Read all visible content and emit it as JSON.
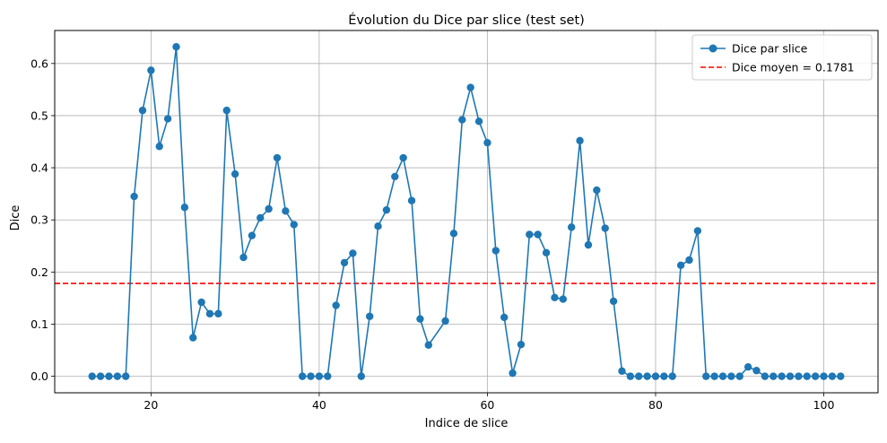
{
  "chart_data": {
    "type": "line",
    "title": "Évolution du Dice par slice (test set)",
    "xlabel": "Indice de slice",
    "ylabel": "Dice",
    "xlim": [
      8.55,
      106.45
    ],
    "ylim": [
      -0.0316,
      0.6633
    ],
    "xticks": [
      20,
      40,
      60,
      80,
      100
    ],
    "yticks": [
      0.0,
      0.1,
      0.2,
      0.3,
      0.4,
      0.5,
      0.6
    ],
    "xtick_labels": [
      "20",
      "40",
      "60",
      "80",
      "100"
    ],
    "ytick_labels": [
      "0.0",
      "0.1",
      "0.2",
      "0.3",
      "0.4",
      "0.5",
      "0.6"
    ],
    "grid": true,
    "legend_position": "upper right",
    "series": [
      {
        "name": "Dice par slice",
        "color": "#1f77b4",
        "marker": "circle",
        "x": [
          13,
          14,
          15,
          16,
          17,
          18,
          19,
          20,
          21,
          22,
          23,
          24,
          25,
          26,
          27,
          28,
          29,
          30,
          31,
          32,
          33,
          34,
          35,
          36,
          37,
          38,
          39,
          40,
          41,
          42,
          43,
          44,
          45,
          46,
          47,
          48,
          49,
          50,
          51,
          52,
          53,
          55,
          56,
          57,
          58,
          59,
          60,
          61,
          62,
          63,
          64,
          65,
          66,
          67,
          68,
          69,
          70,
          71,
          72,
          73,
          74,
          75,
          76,
          77,
          78,
          79,
          80,
          81,
          82,
          83,
          84,
          85,
          86,
          87,
          88,
          89,
          90,
          91,
          92,
          93,
          94,
          95,
          96,
          97,
          98,
          99,
          100,
          101,
          102
        ],
        "y": [
          0.0,
          0.0,
          0.0,
          0.0,
          0.0,
          0.345,
          0.51,
          0.587,
          0.441,
          0.494,
          0.632,
          0.324,
          0.074,
          0.142,
          0.12,
          0.12,
          0.51,
          0.388,
          0.228,
          0.27,
          0.304,
          0.321,
          0.419,
          0.317,
          0.291,
          0.0,
          0.0,
          0.0,
          0.0,
          0.136,
          0.218,
          0.236,
          0.0,
          0.115,
          0.288,
          0.319,
          0.383,
          0.419,
          0.337,
          0.11,
          0.06,
          0.106,
          0.274,
          0.492,
          0.554,
          0.489,
          0.448,
          0.241,
          0.113,
          0.006,
          0.061,
          0.272,
          0.272,
          0.237,
          0.151,
          0.148,
          0.286,
          0.452,
          0.252,
          0.357,
          0.284,
          0.144,
          0.01,
          0.0,
          0.0,
          0.0,
          0.0,
          0.0,
          0.0,
          0.213,
          0.223,
          0.279,
          0.0,
          0.0,
          0.0,
          0.0,
          0.0,
          0.018,
          0.011,
          0.0,
          0.0,
          0.0,
          0.0,
          0.0,
          0.0,
          0.0,
          0.0,
          0.0,
          0.0
        ]
      },
      {
        "name": "Dice moyen = 0.1781",
        "color": "#ff0000",
        "style": "dashed",
        "hline": 0.1781
      }
    ]
  }
}
